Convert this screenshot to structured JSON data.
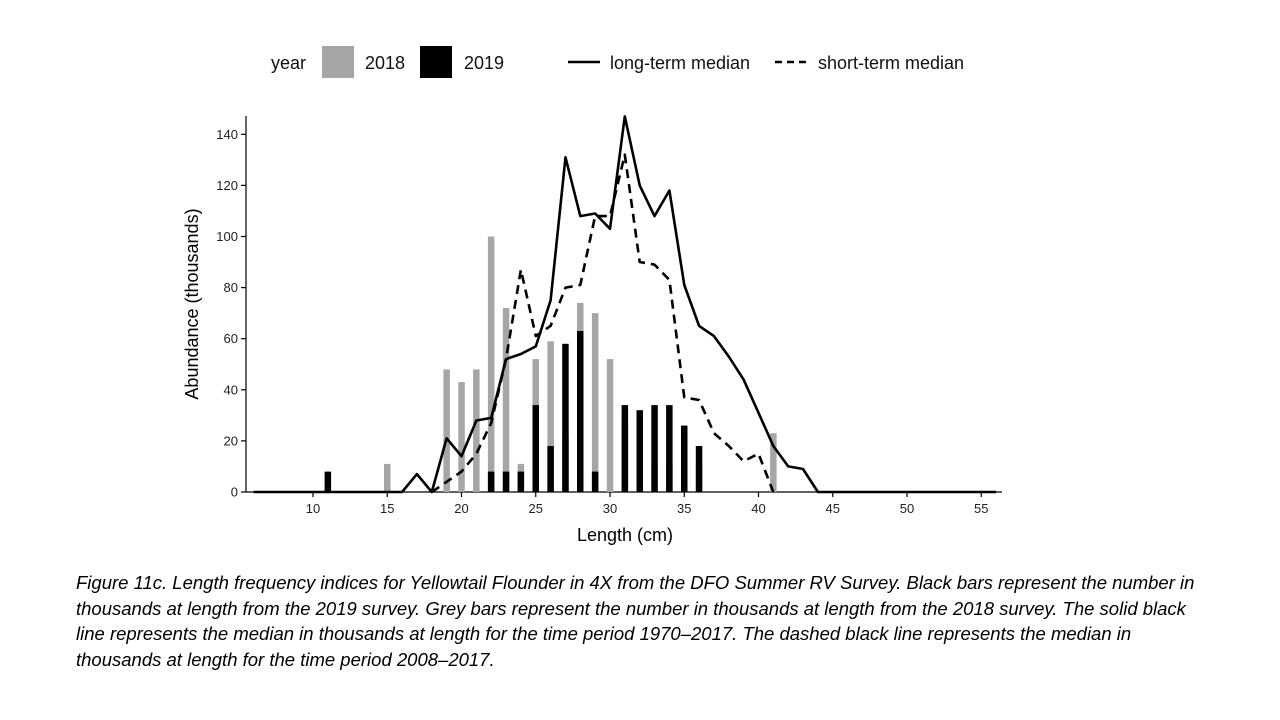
{
  "chart_data": {
    "type": "bar",
    "xlabel": "Length (cm)",
    "ylabel": "Abundance (thousands)",
    "xlim": [
      5.5,
      56.5
    ],
    "ylim": [
      0,
      140
    ],
    "xticks": [
      10,
      15,
      20,
      25,
      30,
      35,
      40,
      45,
      50,
      55
    ],
    "yticks": [
      0,
      20,
      40,
      60,
      80,
      100,
      120,
      140
    ],
    "grid": false,
    "legend": {
      "position": "top",
      "title": "year",
      "entries": [
        {
          "label": "2018",
          "color": "#a6a6a6",
          "kind": "bar"
        },
        {
          "label": "2019",
          "color": "#000000",
          "kind": "bar"
        },
        {
          "label": "long-term median",
          "kind": "solid-line"
        },
        {
          "label": "short-term median",
          "kind": "dashed-line"
        }
      ]
    },
    "bars": [
      {
        "name": "2018",
        "color": "#a6a6a6",
        "x": [
          15,
          19,
          20,
          21,
          22,
          23,
          24,
          25,
          26,
          27,
          28,
          29,
          30,
          31,
          33,
          34,
          35,
          36,
          41
        ],
        "values": [
          11,
          48,
          43,
          48,
          100,
          72,
          11,
          52,
          59,
          22,
          74,
          70,
          52,
          27,
          11,
          11,
          11,
          11,
          23
        ]
      },
      {
        "name": "2019",
        "color": "#000000",
        "x": [
          11,
          22,
          23,
          24,
          25,
          26,
          27,
          28,
          29,
          31,
          32,
          33,
          34,
          35,
          36
        ],
        "values": [
          8,
          8,
          8,
          8,
          34,
          18,
          58,
          63,
          8,
          34,
          32,
          34,
          34,
          26,
          18
        ]
      }
    ],
    "lines": [
      {
        "name": "long-term median",
        "style": "solid",
        "x": [
          6,
          7,
          8,
          9,
          10,
          11,
          12,
          13,
          14,
          15,
          16,
          17,
          18,
          19,
          20,
          21,
          22,
          23,
          24,
          25,
          26,
          27,
          28,
          29,
          30,
          31,
          32,
          33,
          34,
          35,
          36,
          37,
          38,
          39,
          40,
          41,
          42,
          43,
          44,
          45,
          46,
          47,
          48,
          49,
          50,
          51,
          52,
          53,
          54,
          55,
          56
        ],
        "values": [
          0,
          0,
          0,
          0,
          0,
          0,
          0,
          0,
          0,
          0,
          0,
          7,
          0,
          21,
          14,
          28,
          29,
          52,
          54,
          57,
          75,
          131,
          108,
          109,
          103,
          147,
          120,
          108,
          118,
          81,
          65,
          61,
          53,
          44,
          31,
          18,
          10,
          9,
          0,
          0,
          0,
          0,
          0,
          0,
          0,
          0,
          0,
          0,
          0,
          0,
          0
        ]
      },
      {
        "name": "short-term median",
        "style": "dashed",
        "x": [
          18,
          19,
          20,
          21,
          22,
          23,
          24,
          25,
          26,
          27,
          28,
          29,
          30,
          31,
          32,
          33,
          34,
          35,
          36,
          37,
          38,
          39,
          40,
          41
        ],
        "values": [
          0,
          4,
          8,
          15,
          27,
          52,
          87,
          61,
          65,
          80,
          81,
          108,
          108,
          132,
          90,
          89,
          83,
          37,
          36,
          23,
          18,
          12,
          15,
          0
        ]
      }
    ]
  },
  "caption": "Figure 11c. Length frequency indices for Yellowtail Flounder in 4X from the DFO Summer RV Survey. Black bars represent the number in thousands at length from the 2019 survey. Grey bars represent the number in thousands at length from the 2018 survey. The solid black line represents the median in thousands at length for the time period 1970–2017. The dashed black line represents the median in thousands at length for the time period 2008–2017."
}
